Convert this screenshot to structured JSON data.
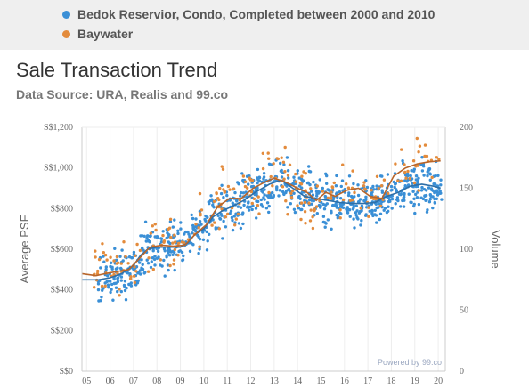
{
  "legend": [
    {
      "label": "Bedok Reservior, Condo, Completed between 2000 and 2010",
      "color": "#3a8fd6"
    },
    {
      "label": "Baywater",
      "color": "#e38b3c"
    }
  ],
  "title": "Sale Transaction Trend",
  "subtitle": "Data Source: URA, Realis and 99.co",
  "credit": "Powered by 99.co",
  "chart_data": {
    "type": "scatter",
    "title": "Sale Transaction Trend",
    "ylabel": "Average PSF",
    "y2label": "Volume",
    "x_ticks": [
      "05",
      "06",
      "07",
      "08",
      "09",
      "10",
      "11",
      "12",
      "13",
      "14",
      "15",
      "16",
      "17",
      "18",
      "19",
      "20"
    ],
    "y_ticks": [
      "S$0",
      "S$200",
      "S$400",
      "S$600",
      "S$800",
      "S$1,000",
      "S$1,200"
    ],
    "y2_ticks": [
      "0",
      "50",
      "100",
      "150",
      "200"
    ],
    "ylim": [
      0,
      1200
    ],
    "y2lim": [
      0,
      200
    ],
    "xlim": [
      2004.8,
      2020.3
    ],
    "grid_vertical": true,
    "series": [
      {
        "name": "Bedok Reservior, Condo, Completed between 2000 and 2010",
        "color": "#3a8fd6",
        "trend": [
          [
            2004.8,
            450
          ],
          [
            2005.5,
            450
          ],
          [
            2006,
            460
          ],
          [
            2006.5,
            480
          ],
          [
            2007,
            520
          ],
          [
            2007.3,
            570
          ],
          [
            2007.6,
            600
          ],
          [
            2008,
            610
          ],
          [
            2008.5,
            610
          ],
          [
            2009,
            610
          ],
          [
            2009.3,
            630
          ],
          [
            2009.6,
            670
          ],
          [
            2010,
            700
          ],
          [
            2010.4,
            760
          ],
          [
            2010.8,
            790
          ],
          [
            2011.2,
            810
          ],
          [
            2011.7,
            840
          ],
          [
            2012.2,
            880
          ],
          [
            2012.8,
            920
          ],
          [
            2013.3,
            940
          ],
          [
            2013.8,
            900
          ],
          [
            2014.3,
            860
          ],
          [
            2014.8,
            850
          ],
          [
            2015.3,
            840
          ],
          [
            2015.8,
            830
          ],
          [
            2016.3,
            825
          ],
          [
            2016.8,
            825
          ],
          [
            2017.3,
            830
          ],
          [
            2017.8,
            860
          ],
          [
            2018.3,
            880
          ],
          [
            2018.8,
            910
          ],
          [
            2019.3,
            920
          ],
          [
            2019.8,
            910
          ],
          [
            2020.1,
            900
          ]
        ]
      },
      {
        "name": "Baywater",
        "color": "#e38b3c",
        "trend": [
          [
            2004.8,
            480
          ],
          [
            2005.4,
            470
          ],
          [
            2005.8,
            480
          ],
          [
            2006.3,
            490
          ],
          [
            2006.8,
            500
          ],
          [
            2007.3,
            560
          ],
          [
            2007.7,
            610
          ],
          [
            2008.2,
            620
          ],
          [
            2008.7,
            615
          ],
          [
            2009.2,
            620
          ],
          [
            2009.6,
            670
          ],
          [
            2010.1,
            720
          ],
          [
            2010.6,
            810
          ],
          [
            2011.1,
            850
          ],
          [
            2011.6,
            850
          ],
          [
            2012.1,
            900
          ],
          [
            2012.6,
            930
          ],
          [
            2013,
            950
          ],
          [
            2013.5,
            930
          ],
          [
            2014,
            900
          ],
          [
            2014.4,
            880
          ],
          [
            2014.8,
            840
          ],
          [
            2015.2,
            880
          ],
          [
            2015.6,
            860
          ],
          [
            2016.1,
            890
          ],
          [
            2016.6,
            900
          ],
          [
            2017.1,
            860
          ],
          [
            2017.6,
            850
          ],
          [
            2018.1,
            960
          ],
          [
            2018.6,
            1000
          ],
          [
            2019.1,
            1020
          ],
          [
            2019.6,
            1030
          ],
          [
            2020.1,
            1035
          ]
        ]
      }
    ]
  }
}
